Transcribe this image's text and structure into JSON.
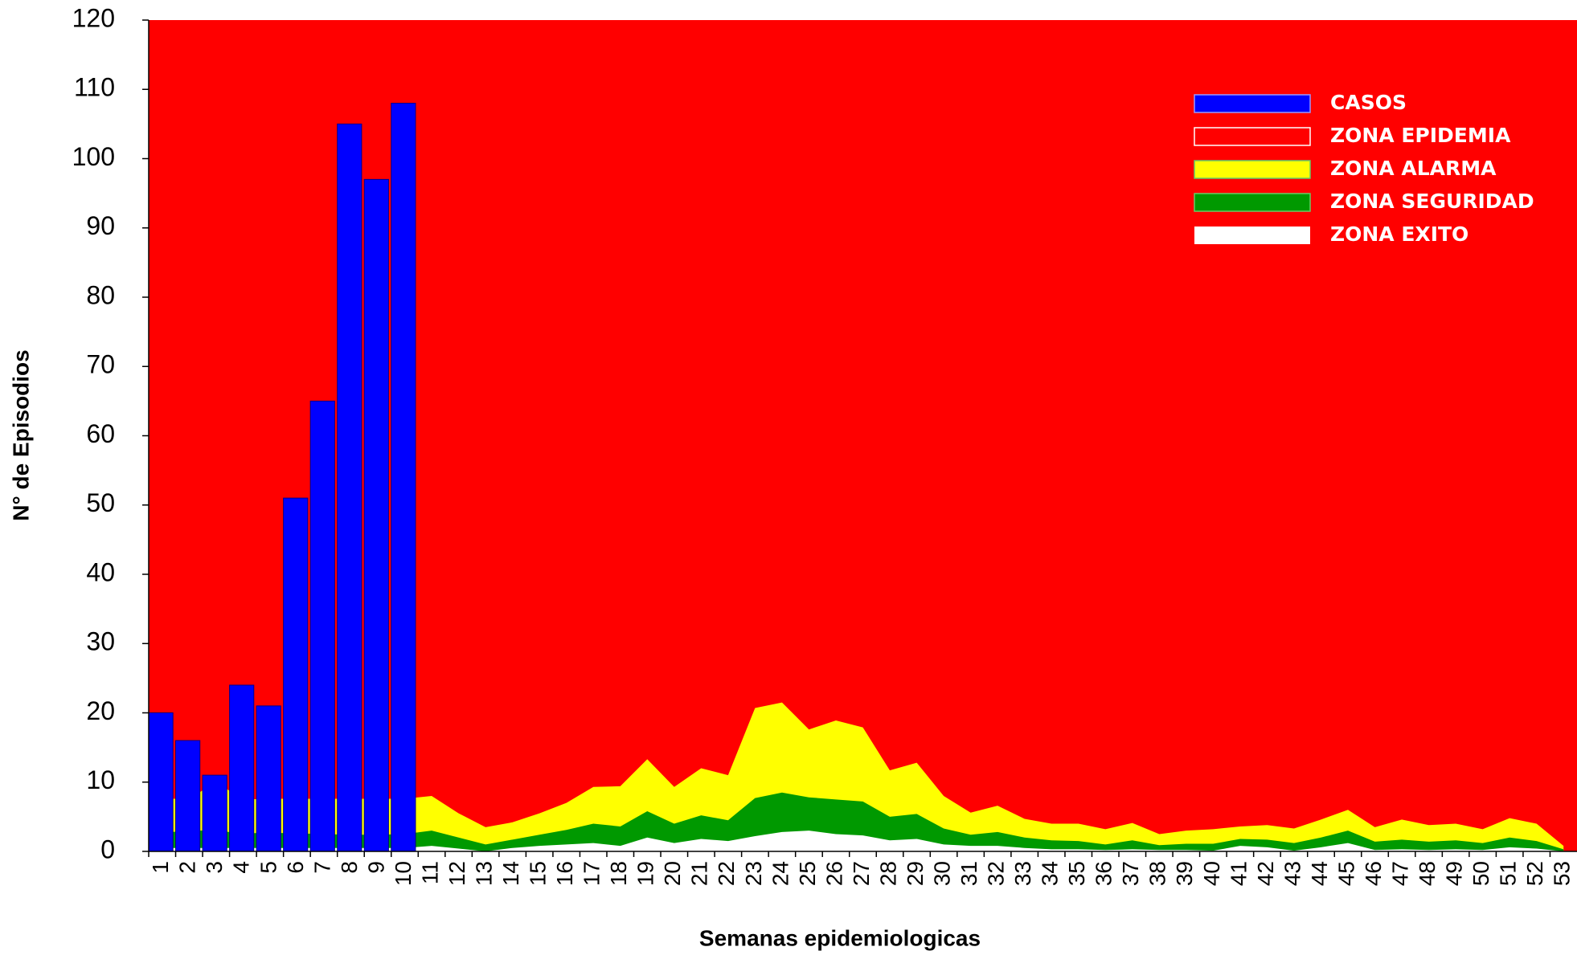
{
  "chart_data": {
    "type": "bar",
    "x_label": "Semanas epidemiologicas",
    "y_label": "N° de Episodios",
    "categories": [
      "1",
      "2",
      "3",
      "4",
      "5",
      "6",
      "7",
      "8",
      "9",
      "10",
      "11",
      "12",
      "13",
      "14",
      "15",
      "16",
      "17",
      "18",
      "19",
      "20",
      "21",
      "22",
      "23",
      "24",
      "25",
      "26",
      "27",
      "28",
      "29",
      "30",
      "31",
      "32",
      "33",
      "34",
      "35",
      "36",
      "37",
      "38",
      "39",
      "40",
      "41",
      "42",
      "43",
      "44",
      "45",
      "46",
      "47",
      "48",
      "49",
      "50",
      "51",
      "52",
      "53"
    ],
    "ylim": [
      0,
      120
    ],
    "yticks": [
      0,
      10,
      20,
      30,
      40,
      50,
      60,
      70,
      80,
      90,
      100,
      110,
      120
    ],
    "series": [
      {
        "name": "CASOS",
        "color": "#0000ff",
        "kind": "bar",
        "values": [
          20,
          16,
          11,
          24,
          21,
          51,
          65,
          105,
          97,
          108,
          null,
          null,
          null,
          null,
          null,
          null,
          null,
          null,
          null,
          null,
          null,
          null,
          null,
          null,
          null,
          null,
          null,
          null,
          null,
          null,
          null,
          null,
          null,
          null,
          null,
          null,
          null,
          null,
          null,
          null,
          null,
          null,
          null,
          null,
          null,
          null,
          null,
          null,
          null,
          null,
          null,
          null,
          null
        ]
      },
      {
        "name": "ZONA EPIDEMIA",
        "color": "#ff0000",
        "kind": "background"
      },
      {
        "name": "ZONA ALARMA",
        "color": "#ffff00",
        "kind": "area",
        "values": [
          7.6,
          7.6,
          10,
          7.5,
          7.6,
          7.6,
          7.6,
          7.6,
          7.6,
          7.6,
          8,
          5.5,
          3.5,
          4.2,
          5.5,
          7,
          9.3,
          9.4,
          13.3,
          9.3,
          12,
          11,
          20.7,
          21.5,
          17.6,
          18.9,
          17.9,
          11.7,
          12.8,
          8,
          5.6,
          6.6,
          4.7,
          4,
          4,
          3.2,
          4.1,
          2.5,
          3,
          3.2,
          3.6,
          3.8,
          3.3,
          4.6,
          6,
          3.5,
          4.6,
          3.8,
          4,
          3.2,
          4.8,
          4,
          0.8
        ]
      },
      {
        "name": "ZONA SEGURIDAD",
        "color": "#009900",
        "kind": "area",
        "values": [
          2.7,
          3,
          3,
          2.6,
          2.7,
          2.6,
          2.5,
          2.4,
          2.4,
          2.5,
          3,
          2,
          1,
          1.7,
          2.4,
          3.1,
          4,
          3.6,
          5.8,
          4,
          5.2,
          4.5,
          7.7,
          8.5,
          7.8,
          7.5,
          7.2,
          5,
          5.4,
          3.3,
          2.4,
          2.8,
          2,
          1.6,
          1.5,
          1,
          1.6,
          0.9,
          1.1,
          1.1,
          1.8,
          1.7,
          1.2,
          2,
          3,
          1.4,
          1.7,
          1.4,
          1.6,
          1.2,
          2,
          1.5,
          0.3
        ]
      },
      {
        "name": "ZONA EXITO",
        "color": "#ffffff",
        "kind": "area",
        "values": [
          0.5,
          0.5,
          0.5,
          0.5,
          0.5,
          0.5,
          0.5,
          0.5,
          0.5,
          0.5,
          0.8,
          0.4,
          0,
          0.5,
          0.8,
          1,
          1.2,
          0.8,
          2,
          1.2,
          1.8,
          1.5,
          2.2,
          2.8,
          3,
          2.5,
          2.3,
          1.6,
          1.8,
          1,
          0.8,
          0.8,
          0.5,
          0.3,
          0.3,
          0.2,
          0.3,
          0.2,
          0.2,
          0.1,
          0.8,
          0.6,
          0.1,
          0.6,
          1.2,
          0.2,
          0.3,
          0.2,
          0.3,
          0.2,
          0.6,
          0.4,
          0
        ]
      }
    ]
  }
}
